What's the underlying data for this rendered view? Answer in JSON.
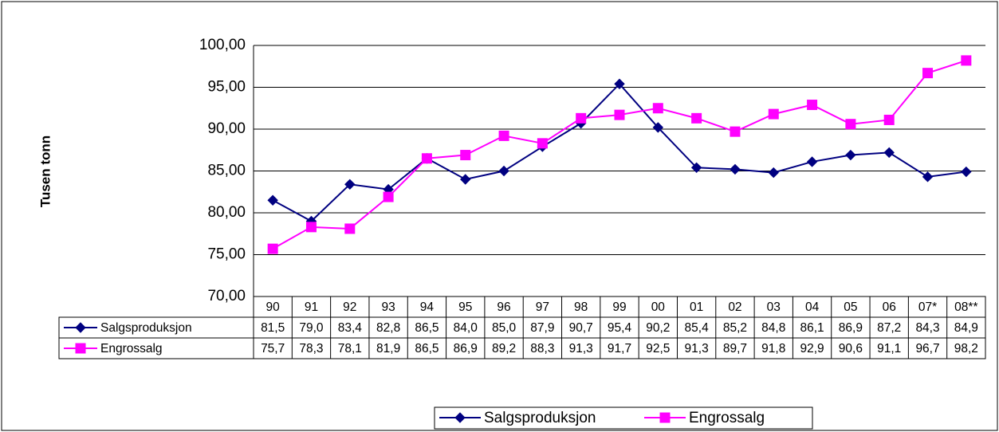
{
  "chart_data": {
    "type": "line",
    "y_label": "Tusen tonn",
    "categories": [
      "90",
      "91",
      "92",
      "93",
      "94",
      "95",
      "96",
      "97",
      "98",
      "99",
      "00",
      "01",
      "02",
      "03",
      "04",
      "05",
      "06",
      "07*",
      "08**"
    ],
    "series": [
      {
        "name": "Salgsproduksjon",
        "color": "#000080",
        "marker": "diamond",
        "values": [
          81.5,
          79.0,
          83.4,
          82.8,
          86.5,
          84.0,
          85.0,
          87.9,
          90.7,
          95.4,
          90.2,
          85.4,
          85.2,
          84.8,
          86.1,
          86.9,
          87.2,
          84.3,
          84.9
        ],
        "value_labels": [
          "81,5",
          "79,0",
          "83,4",
          "82,8",
          "86,5",
          "84,0",
          "85,0",
          "87,9",
          "90,7",
          "95,4",
          "90,2",
          "85,4",
          "85,2",
          "84,8",
          "86,1",
          "86,9",
          "87,2",
          "84,3",
          "84,9"
        ]
      },
      {
        "name": "Engrossalg",
        "color": "#FF00FF",
        "marker": "square",
        "values": [
          75.7,
          78.3,
          78.1,
          81.9,
          86.5,
          86.9,
          89.2,
          88.3,
          91.3,
          91.7,
          92.5,
          91.3,
          89.7,
          91.8,
          92.9,
          90.6,
          91.1,
          96.7,
          98.2
        ],
        "value_labels": [
          "75,7",
          "78,3",
          "78,1",
          "81,9",
          "86,5",
          "86,9",
          "89,2",
          "88,3",
          "91,3",
          "91,7",
          "92,5",
          "91,3",
          "89,7",
          "91,8",
          "92,9",
          "90,6",
          "91,1",
          "96,7",
          "98,2"
        ]
      }
    ],
    "ylim": [
      70,
      100
    ],
    "yticks": [
      {
        "value": 70,
        "label": "70,00"
      },
      {
        "value": 75,
        "label": "75,00"
      },
      {
        "value": 80,
        "label": "80,00"
      },
      {
        "value": 85,
        "label": "85,00"
      },
      {
        "value": 90,
        "label": "90,00"
      },
      {
        "value": 95,
        "label": "95,00"
      },
      {
        "value": 100,
        "label": "100,00"
      }
    ],
    "grid": true,
    "legend": "bottom"
  }
}
